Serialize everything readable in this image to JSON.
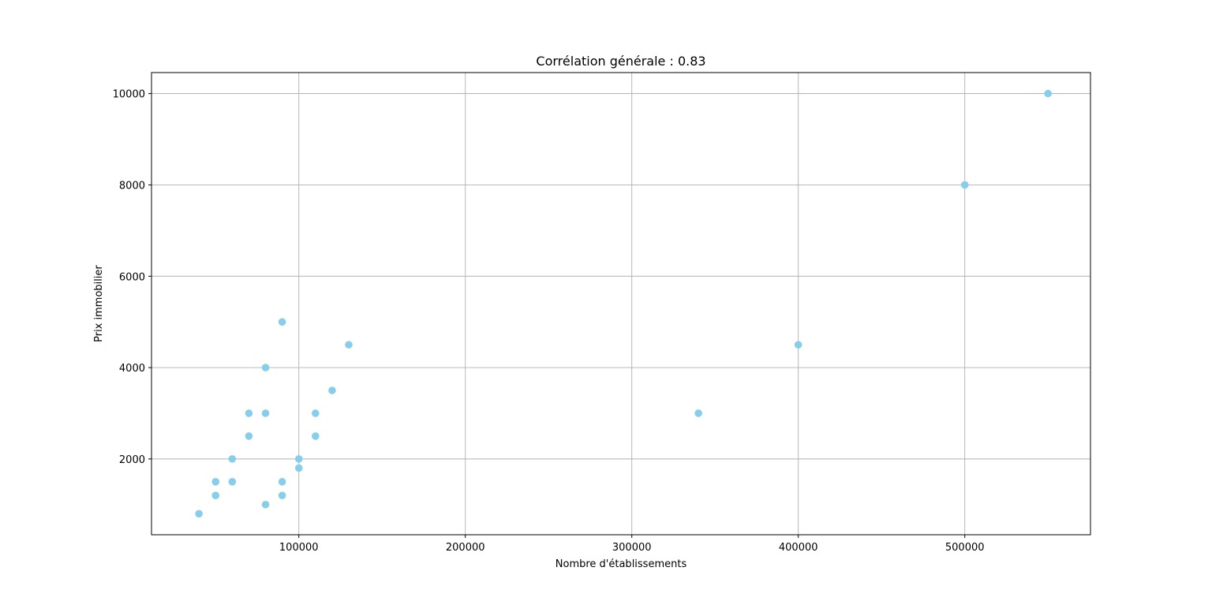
{
  "chart_data": {
    "type": "scatter",
    "title": "Corrélation générale : 0.83",
    "xlabel": "Nombre d'établissements",
    "ylabel": "Prix immobilier",
    "xlim": [
      11500,
      575500
    ],
    "ylim": [
      340,
      10460
    ],
    "xticks": [
      100000,
      200000,
      300000,
      400000,
      500000
    ],
    "yticks": [
      2000,
      4000,
      6000,
      8000,
      10000
    ],
    "grid": true,
    "marker_color": "#87ceeb",
    "points": [
      {
        "x": 40000,
        "y": 800
      },
      {
        "x": 50000,
        "y": 1200
      },
      {
        "x": 50000,
        "y": 1500
      },
      {
        "x": 60000,
        "y": 1500
      },
      {
        "x": 60000,
        "y": 2000
      },
      {
        "x": 70000,
        "y": 2500
      },
      {
        "x": 70000,
        "y": 3000
      },
      {
        "x": 80000,
        "y": 1000
      },
      {
        "x": 80000,
        "y": 3000
      },
      {
        "x": 80000,
        "y": 4000
      },
      {
        "x": 90000,
        "y": 1200
      },
      {
        "x": 90000,
        "y": 1500
      },
      {
        "x": 90000,
        "y": 5000
      },
      {
        "x": 100000,
        "y": 1800
      },
      {
        "x": 100000,
        "y": 2000
      },
      {
        "x": 110000,
        "y": 2500
      },
      {
        "x": 110000,
        "y": 3000
      },
      {
        "x": 120000,
        "y": 3500
      },
      {
        "x": 130000,
        "y": 4500
      },
      {
        "x": 340000,
        "y": 3000
      },
      {
        "x": 400000,
        "y": 4500
      },
      {
        "x": 500000,
        "y": 8000
      },
      {
        "x": 550000,
        "y": 10000
      }
    ]
  }
}
